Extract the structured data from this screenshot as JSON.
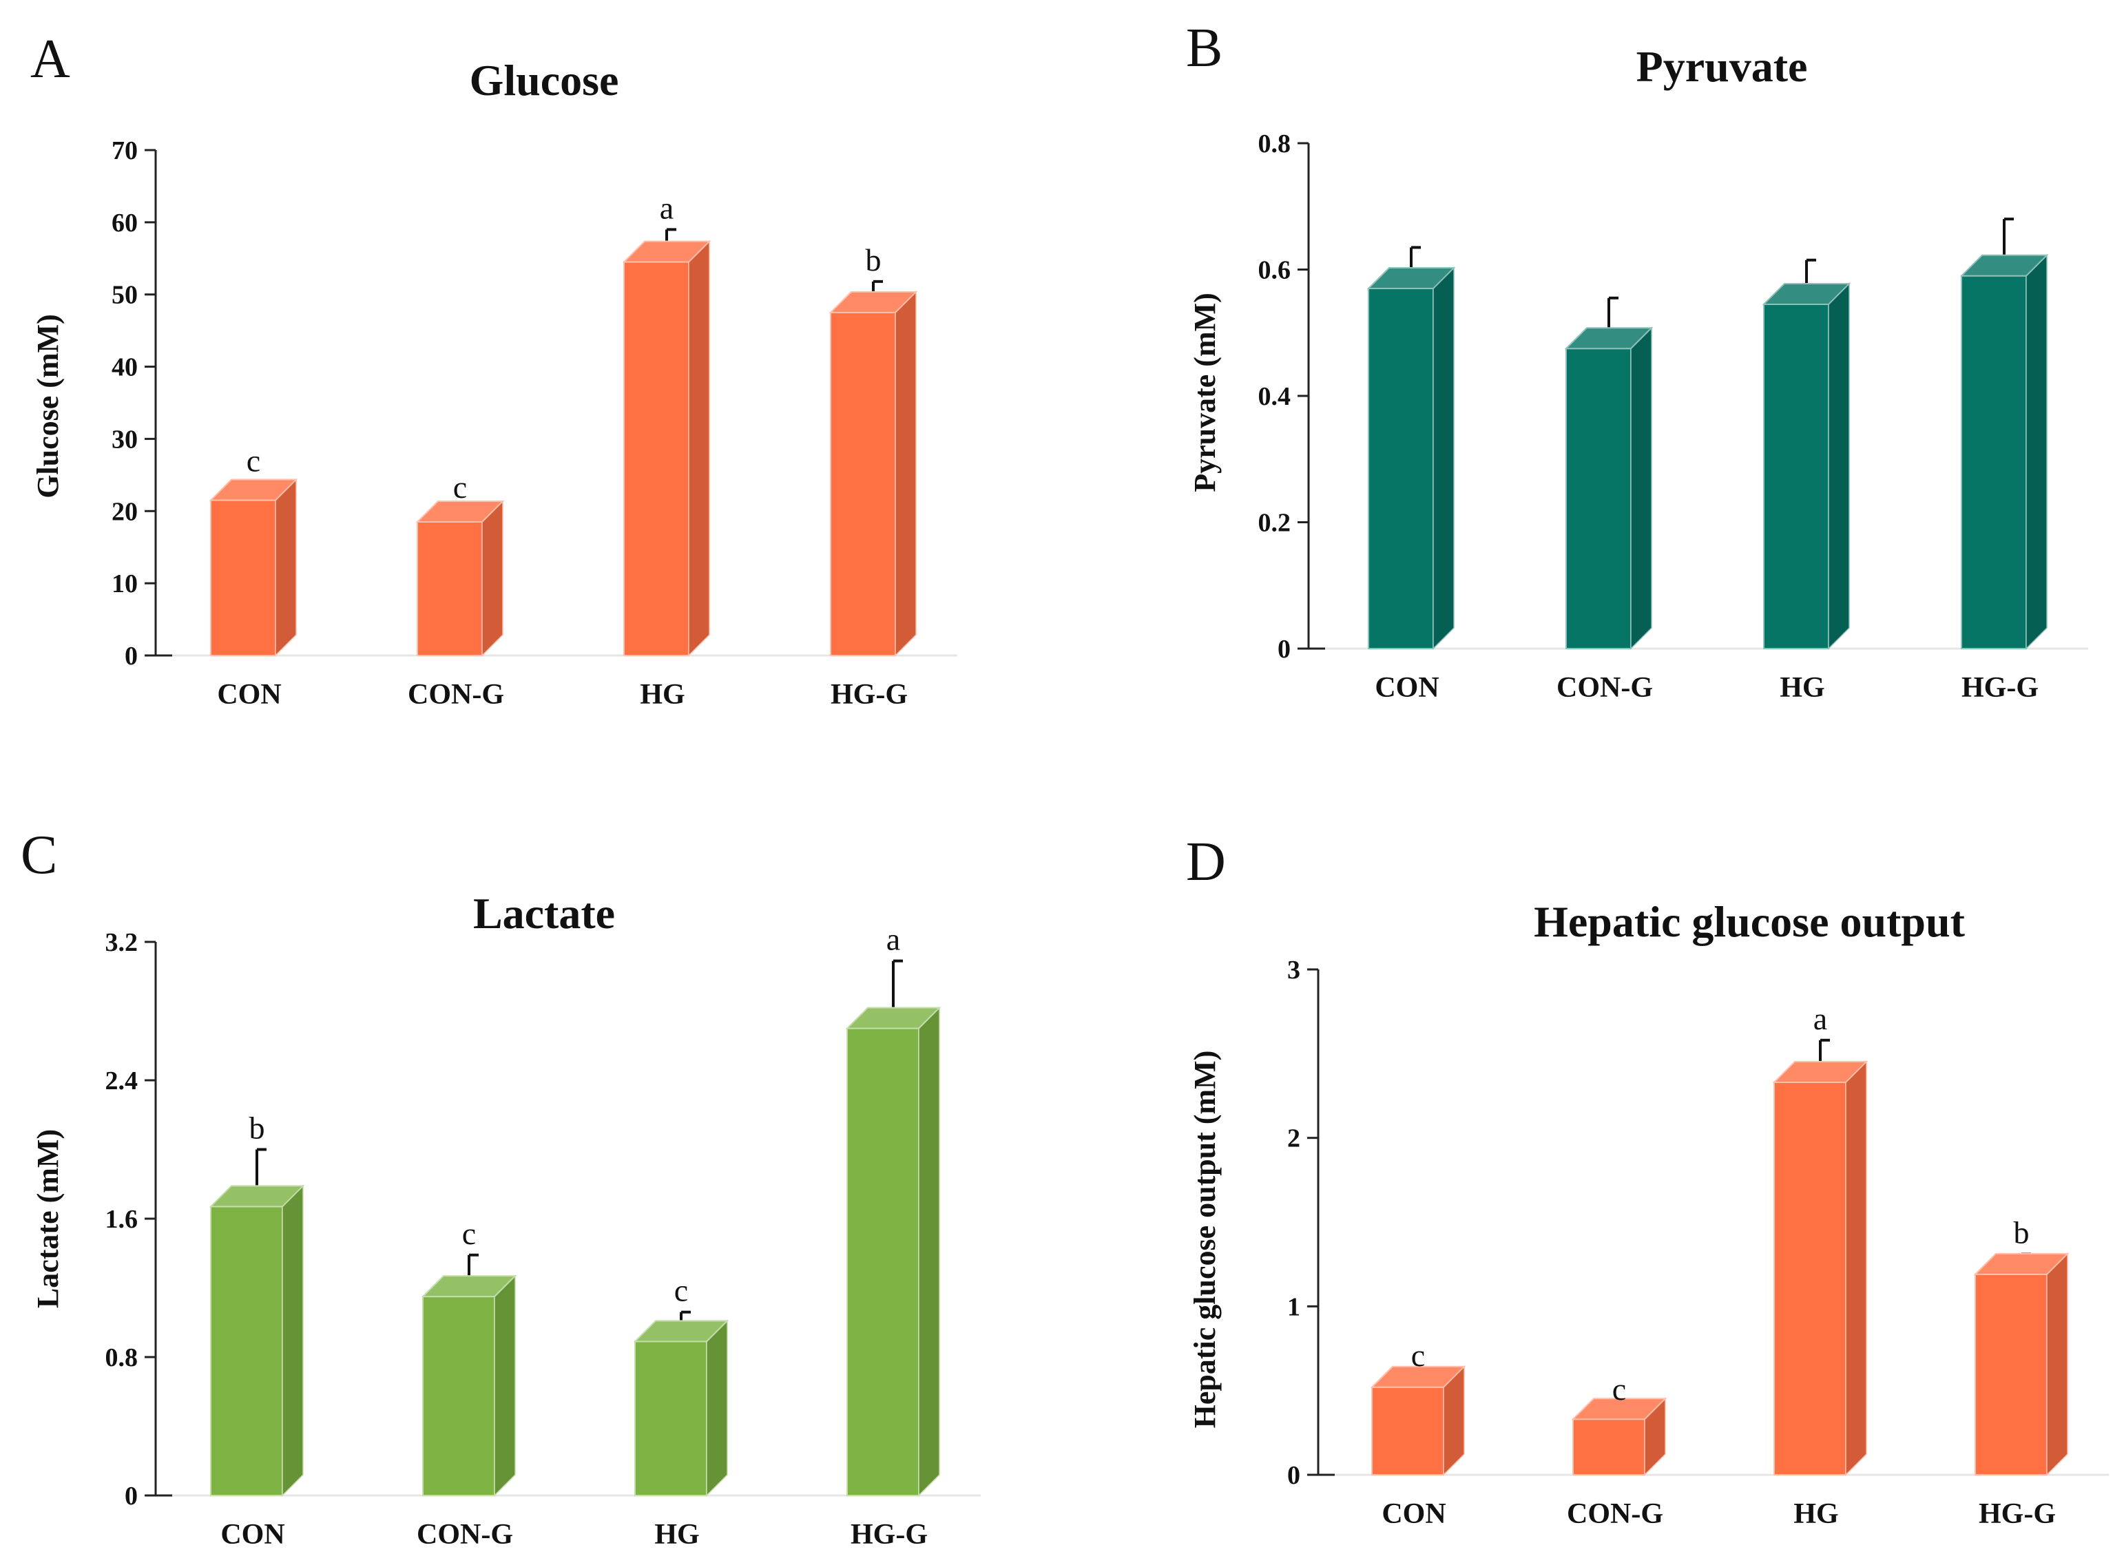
{
  "chart_data": [
    {
      "panel": "A",
      "type": "bar",
      "title": "Glucose",
      "ylabel": "Glucose (mM)",
      "xlabel": "",
      "categories": [
        "CON",
        "CON-G",
        "HG",
        "HG-G"
      ],
      "values": [
        21.5,
        18.5,
        54.5,
        47.5
      ],
      "errors": [
        2.5,
        1.8,
        4.5,
        4.3
      ],
      "significance": [
        "c",
        "c",
        "a",
        "b"
      ],
      "ylim": [
        0,
        70
      ],
      "yticks": [
        0,
        10,
        20,
        30,
        40,
        50,
        60,
        70
      ],
      "ytick_labels": [
        "0",
        "10",
        "20",
        "30",
        "40",
        "50",
        "60",
        "70"
      ],
      "color": "#ff7043",
      "grid": false
    },
    {
      "panel": "B",
      "type": "bar",
      "title": "Pyruvate",
      "ylabel": "Pyruvate (mM)",
      "xlabel": "",
      "categories": [
        "CON",
        "CON-G",
        "HG",
        "HG-G"
      ],
      "values": [
        0.57,
        0.475,
        0.545,
        0.59
      ],
      "errors": [
        0.065,
        0.08,
        0.07,
        0.09
      ],
      "significance": [
        "",
        "",
        "",
        ""
      ],
      "ylim": [
        0,
        0.8
      ],
      "yticks": [
        0,
        0.2,
        0.4,
        0.6,
        0.8
      ],
      "ytick_labels": [
        "0",
        "0.2",
        "0.4",
        "0.6",
        "0.8"
      ],
      "color": "#067565",
      "grid": false
    },
    {
      "panel": "C",
      "type": "bar",
      "title": "Lactate",
      "ylabel": "Lactate (mM)",
      "xlabel": "",
      "categories": [
        "CON",
        "CON-G",
        "HG",
        "HG-G"
      ],
      "values": [
        1.67,
        1.15,
        0.89,
        2.7
      ],
      "errors": [
        0.33,
        0.24,
        0.17,
        0.39
      ],
      "significance": [
        "b",
        "c",
        "c",
        "a"
      ],
      "ylim": [
        0,
        3.2
      ],
      "yticks": [
        0,
        0.8,
        1.6,
        2.4,
        3.2
      ],
      "ytick_labels": [
        "0",
        "0.8",
        "1.6",
        "2.4",
        "3.2"
      ],
      "color": "#7db343",
      "grid": false
    },
    {
      "panel": "D",
      "type": "bar",
      "title": "Hepatic glucose output",
      "ylabel": "Hepatic glucose output (mM)",
      "xlabel": "",
      "categories": [
        "CON",
        "CON-G",
        "HG",
        "HG-G"
      ],
      "values": [
        0.52,
        0.33,
        2.33,
        1.19
      ],
      "errors": [
        0.06,
        0.05,
        0.25,
        0.12
      ],
      "significance": [
        "c",
        "c",
        "a",
        "b"
      ],
      "ylim": [
        0,
        3
      ],
      "yticks": [
        0,
        1,
        2,
        3
      ],
      "ytick_labels": [
        "0",
        "1",
        "2",
        "3"
      ],
      "color": "#ff7043",
      "grid": false
    }
  ]
}
